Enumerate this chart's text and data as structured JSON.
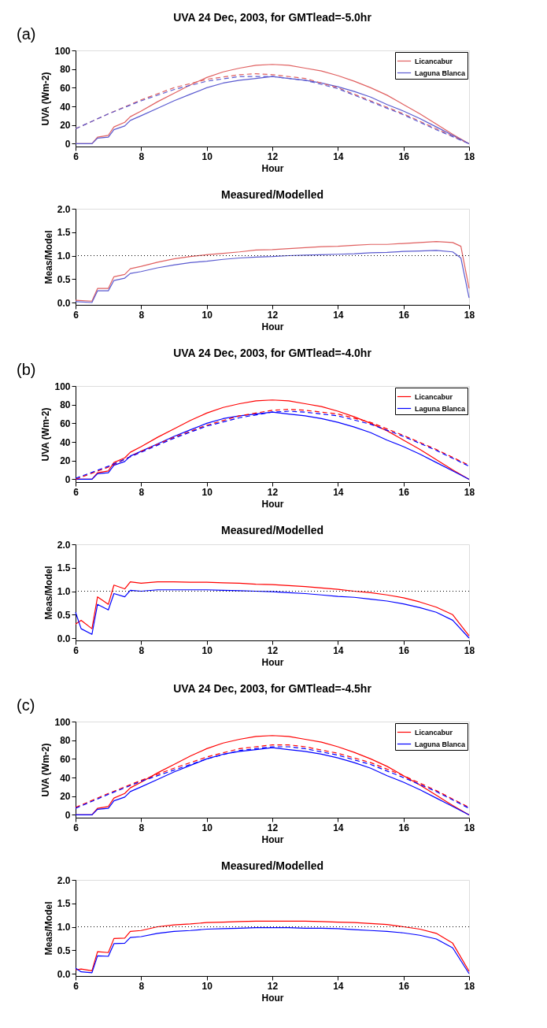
{
  "chart_data": [
    {
      "type": "line",
      "title": "UVA 24 Dec, 2003, for GMTlead=-5.0hr",
      "xlabel": "Hour",
      "ylabel": "UVA (Wm-2)",
      "annotations": [
        "(a)"
      ],
      "xlim": [
        6,
        18
      ],
      "xticks": [
        6,
        8,
        10,
        12,
        14,
        16,
        18
      ],
      "ylim": [
        -3,
        100
      ],
      "yticks": [
        0,
        20,
        40,
        60,
        80,
        100
      ],
      "legend": "top right",
      "series": [
        {
          "name": "Licancabur",
          "color": "#e06060",
          "line_style": "solid",
          "x": [
            6,
            6.5,
            6.67,
            7,
            7.17,
            7.5,
            7.67,
            8,
            8.5,
            9,
            9.5,
            10,
            10.5,
            11,
            11.5,
            12,
            12.5,
            13,
            13.5,
            14,
            14.5,
            15,
            15.5,
            16,
            16.5,
            17,
            17.5,
            18
          ],
          "values": [
            0,
            0,
            7,
            9,
            18,
            23,
            29,
            35,
            45,
            54,
            63,
            71,
            77,
            81,
            84,
            85,
            84,
            81,
            78,
            73,
            67,
            60,
            52,
            42,
            32,
            21,
            10,
            0
          ]
        },
        {
          "name": "Laguna Blanca",
          "color": "#5a5ad0",
          "line_style": "solid",
          "x": [
            6,
            6.5,
            6.67,
            7,
            7.17,
            7.5,
            7.67,
            8,
            8.5,
            9,
            9.5,
            10,
            10.5,
            11,
            11.5,
            12,
            12.5,
            13,
            13.5,
            14,
            14.5,
            15,
            15.5,
            16,
            16.5,
            17,
            17.5,
            18
          ],
          "values": [
            0,
            0,
            6,
            7,
            15,
            19,
            25,
            30,
            38,
            46,
            53,
            60,
            65,
            68,
            70,
            72,
            70,
            68,
            65,
            61,
            56,
            50,
            42,
            35,
            27,
            18,
            9,
            0
          ]
        },
        {
          "color": "#e06060",
          "line_style": "dashed",
          "x": [
            6,
            7,
            8,
            9,
            10,
            11,
            11.5,
            12,
            13,
            14,
            15,
            16,
            17,
            18
          ],
          "values": [
            16,
            32,
            47,
            60,
            69,
            74,
            75,
            74,
            70,
            60,
            46,
            32,
            16,
            0
          ]
        },
        {
          "color": "#5a5ad0",
          "line_style": "dashed",
          "x": [
            6,
            7,
            8,
            9,
            10,
            11,
            11.5,
            12,
            13,
            14,
            15,
            16,
            17,
            18
          ],
          "values": [
            16,
            32,
            46,
            58,
            67,
            72,
            72,
            72,
            68,
            59,
            45,
            31,
            15,
            0
          ]
        }
      ]
    },
    {
      "type": "line",
      "title": "Measured/Modelled",
      "xlabel": "Hour",
      "ylabel": "Meas/Model",
      "xlim": [
        6,
        18
      ],
      "xticks": [
        6,
        8,
        10,
        12,
        14,
        16,
        18
      ],
      "ylim": [
        -0.05,
        2.0
      ],
      "yticks": [
        {
          "value": 0,
          "label": "0.0"
        },
        0.5,
        {
          "value": 1,
          "label": "1.0"
        },
        1.5,
        {
          "value": 2,
          "label": "2.0"
        }
      ],
      "ref_lines": [
        {
          "axis": "y",
          "value": 1,
          "color": "#000000",
          "line_style": "dotted"
        }
      ],
      "series": [
        {
          "color": "#e06060",
          "line_style": "solid",
          "x": [
            6,
            6.5,
            6.67,
            7,
            7.17,
            7.5,
            7.67,
            8,
            8.5,
            9,
            9.5,
            10,
            10.5,
            11,
            11.5,
            12,
            12.5,
            13,
            13.5,
            14,
            14.5,
            15,
            15.5,
            16,
            16.5,
            17,
            17.5,
            17.75,
            18
          ],
          "values": [
            0.05,
            0.03,
            0.3,
            0.3,
            0.55,
            0.6,
            0.72,
            0.77,
            0.86,
            0.93,
            0.98,
            1.02,
            1.05,
            1.08,
            1.12,
            1.13,
            1.15,
            1.17,
            1.19,
            1.2,
            1.22,
            1.24,
            1.24,
            1.26,
            1.28,
            1.3,
            1.28,
            1.2,
            0.3
          ]
        },
        {
          "color": "#5a5ad0",
          "line_style": "solid",
          "x": [
            6,
            6.5,
            6.67,
            7,
            7.17,
            7.5,
            7.67,
            8,
            8.5,
            9,
            9.5,
            10,
            10.5,
            11,
            11.5,
            12,
            12.5,
            13,
            13.5,
            14,
            14.5,
            15,
            15.5,
            16,
            16.5,
            17,
            17.5,
            17.75,
            18
          ],
          "values": [
            0.02,
            0,
            0.25,
            0.25,
            0.47,
            0.52,
            0.62,
            0.66,
            0.74,
            0.8,
            0.85,
            0.88,
            0.92,
            0.95,
            0.97,
            0.98,
            1.0,
            1.01,
            1.02,
            1.03,
            1.04,
            1.06,
            1.07,
            1.09,
            1.1,
            1.11,
            1.08,
            0.95,
            0.1
          ]
        }
      ]
    },
    {
      "type": "line",
      "title": "UVA 24 Dec, 2003, for GMTlead=-4.0hr",
      "xlabel": "Hour",
      "ylabel": "UVA (Wm-2)",
      "annotations": [
        "(b)"
      ],
      "xlim": [
        6,
        18
      ],
      "xticks": [
        6,
        8,
        10,
        12,
        14,
        16,
        18
      ],
      "ylim": [
        -3,
        100
      ],
      "yticks": [
        0,
        20,
        40,
        60,
        80,
        100
      ],
      "legend": "top right",
      "series": [
        {
          "name": "Licancabur",
          "color": "#ff0000",
          "line_style": "solid",
          "x": [
            6,
            6.5,
            6.67,
            7,
            7.17,
            7.5,
            7.67,
            8,
            8.5,
            9,
            9.5,
            10,
            10.5,
            11,
            11.5,
            12,
            12.5,
            13,
            13.5,
            14,
            14.5,
            15,
            15.5,
            16,
            16.5,
            17,
            17.5,
            18
          ],
          "values": [
            0,
            0,
            7,
            9,
            18,
            23,
            29,
            35,
            45,
            54,
            63,
            71,
            77,
            81,
            84,
            85,
            84,
            81,
            78,
            73,
            67,
            60,
            52,
            42,
            32,
            21,
            10,
            0
          ]
        },
        {
          "name": "Laguna Blanca",
          "color": "#0000ff",
          "line_style": "solid",
          "x": [
            6,
            6.5,
            6.67,
            7,
            7.17,
            7.5,
            7.67,
            8,
            8.5,
            9,
            9.5,
            10,
            10.5,
            11,
            11.5,
            12,
            12.5,
            13,
            13.5,
            14,
            14.5,
            15,
            15.5,
            16,
            16.5,
            17,
            17.5,
            18
          ],
          "values": [
            0,
            0,
            6,
            7,
            15,
            19,
            25,
            30,
            38,
            46,
            53,
            60,
            65,
            68,
            70,
            72,
            70,
            68,
            65,
            61,
            56,
            50,
            42,
            35,
            27,
            18,
            9,
            0
          ]
        },
        {
          "color": "#ff0000",
          "line_style": "dashed",
          "x": [
            6,
            7,
            8,
            9,
            10,
            11,
            12,
            12.5,
            13,
            14,
            15,
            16,
            17,
            18
          ],
          "values": [
            0,
            13,
            30,
            45,
            58,
            68,
            74,
            75,
            74,
            70,
            61,
            47,
            32,
            15
          ]
        },
        {
          "color": "#0000ff",
          "line_style": "dashed",
          "x": [
            6,
            7,
            8,
            9,
            10,
            11,
            12,
            12.5,
            13,
            14,
            15,
            16,
            17,
            18
          ],
          "values": [
            1,
            14,
            29,
            44,
            57,
            66,
            72,
            73,
            72,
            68,
            59,
            46,
            31,
            14
          ]
        }
      ]
    },
    {
      "type": "line",
      "title": "Measured/Modelled",
      "xlabel": "Hour",
      "ylabel": "Meas/Model",
      "xlim": [
        6,
        18
      ],
      "xticks": [
        6,
        8,
        10,
        12,
        14,
        16,
        18
      ],
      "ylim": [
        -0.05,
        2.0
      ],
      "yticks": [
        {
          "value": 0,
          "label": "0.0"
        },
        0.5,
        {
          "value": 1,
          "label": "1.0"
        },
        1.5,
        {
          "value": 2,
          "label": "2.0"
        }
      ],
      "ref_lines": [
        {
          "axis": "y",
          "value": 1,
          "color": "#000000",
          "line_style": "dotted"
        }
      ],
      "series": [
        {
          "color": "#ff0000",
          "line_style": "solid",
          "x": [
            6,
            6.17,
            6.5,
            6.67,
            7,
            7.17,
            7.5,
            7.67,
            8,
            8.5,
            9,
            9.5,
            10,
            10.5,
            11,
            11.5,
            12,
            12.5,
            13,
            13.5,
            14,
            14.5,
            15,
            15.5,
            16,
            16.5,
            17,
            17.5,
            18
          ],
          "values": [
            0.3,
            0.38,
            0.2,
            0.88,
            0.72,
            1.13,
            1.05,
            1.2,
            1.17,
            1.2,
            1.2,
            1.19,
            1.19,
            1.18,
            1.17,
            1.15,
            1.14,
            1.12,
            1.1,
            1.07,
            1.04,
            1.0,
            0.97,
            0.92,
            0.86,
            0.77,
            0.66,
            0.5,
            0.05
          ]
        },
        {
          "color": "#0000ff",
          "line_style": "solid",
          "x": [
            6,
            6.17,
            6.5,
            6.67,
            7,
            7.17,
            7.5,
            7.67,
            8,
            8.5,
            9,
            9.5,
            10,
            10.5,
            11,
            11.5,
            12,
            12.5,
            13,
            13.5,
            14,
            14.5,
            15,
            15.5,
            16,
            16.5,
            17,
            17.5,
            18
          ],
          "values": [
            0.55,
            0.2,
            0.08,
            0.72,
            0.6,
            0.95,
            0.88,
            1.02,
            1.0,
            1.03,
            1.03,
            1.03,
            1.03,
            1.02,
            1.01,
            1.0,
            0.99,
            0.97,
            0.95,
            0.92,
            0.89,
            0.87,
            0.83,
            0.79,
            0.73,
            0.65,
            0.55,
            0.38,
            0
          ]
        }
      ]
    },
    {
      "type": "line",
      "title": "UVA 24 Dec, 2003, for GMTlead=-4.5hr",
      "xlabel": "Hour",
      "ylabel": "UVA (Wm-2)",
      "annotations": [
        "(c)"
      ],
      "xlim": [
        6,
        18
      ],
      "xticks": [
        6,
        8,
        10,
        12,
        14,
        16,
        18
      ],
      "ylim": [
        -3,
        100
      ],
      "yticks": [
        0,
        20,
        40,
        60,
        80,
        100
      ],
      "legend": "top right",
      "series": [
        {
          "name": "Licancabur",
          "color": "#ff0000",
          "line_style": "solid",
          "x": [
            6,
            6.5,
            6.67,
            7,
            7.17,
            7.5,
            7.67,
            8,
            8.5,
            9,
            9.5,
            10,
            10.5,
            11,
            11.5,
            12,
            12.5,
            13,
            13.5,
            14,
            14.5,
            15,
            15.5,
            16,
            16.5,
            17,
            17.5,
            18
          ],
          "values": [
            0,
            0,
            7,
            9,
            18,
            23,
            29,
            35,
            45,
            54,
            63,
            71,
            77,
            81,
            84,
            85,
            84,
            81,
            78,
            73,
            67,
            60,
            52,
            42,
            32,
            21,
            10,
            0
          ]
        },
        {
          "name": "Laguna Blanca",
          "color": "#0000ff",
          "line_style": "solid",
          "x": [
            6,
            6.5,
            6.67,
            7,
            7.17,
            7.5,
            7.67,
            8,
            8.5,
            9,
            9.5,
            10,
            10.5,
            11,
            11.5,
            12,
            12.5,
            13,
            13.5,
            14,
            14.5,
            15,
            15.5,
            16,
            16.5,
            17,
            17.5,
            18
          ],
          "values": [
            0,
            0,
            6,
            7,
            15,
            19,
            25,
            30,
            38,
            46,
            53,
            60,
            65,
            68,
            70,
            72,
            70,
            68,
            65,
            61,
            56,
            50,
            42,
            35,
            27,
            18,
            9,
            0
          ]
        },
        {
          "color": "#ff0000",
          "line_style": "dashed",
          "x": [
            6,
            7,
            8,
            9,
            10,
            11,
            12,
            12.5,
            13,
            14,
            15,
            16,
            17,
            18
          ],
          "values": [
            8,
            23,
            37,
            50,
            62,
            71,
            75,
            75,
            73,
            66,
            56,
            42,
            26,
            8
          ]
        },
        {
          "color": "#0000ff",
          "line_style": "dashed",
          "x": [
            6,
            7,
            8,
            9,
            10,
            11,
            12,
            12.5,
            13,
            14,
            15,
            16,
            17,
            18
          ],
          "values": [
            7,
            22,
            36,
            48,
            60,
            69,
            73,
            73,
            71,
            64,
            54,
            40,
            25,
            7
          ]
        }
      ]
    },
    {
      "type": "line",
      "title": "Measured/Modelled",
      "xlabel": "Hour",
      "ylabel": "Meas/Model",
      "xlim": [
        6,
        18
      ],
      "xticks": [
        6,
        8,
        10,
        12,
        14,
        16,
        18
      ],
      "ylim": [
        -0.05,
        2.0
      ],
      "yticks": [
        {
          "value": 0,
          "label": "0.0"
        },
        0.5,
        {
          "value": 1,
          "label": "1.0"
        },
        1.5,
        {
          "value": 2,
          "label": "2.0"
        }
      ],
      "ref_lines": [
        {
          "axis": "y",
          "value": 1,
          "color": "#000000",
          "line_style": "dotted"
        }
      ],
      "series": [
        {
          "color": "#ff0000",
          "line_style": "solid",
          "x": [
            6,
            6.17,
            6.5,
            6.67,
            7,
            7.17,
            7.5,
            7.67,
            8,
            8.5,
            9,
            9.5,
            10,
            10.5,
            11,
            11.5,
            12,
            12.5,
            13,
            13.5,
            14,
            14.5,
            15,
            15.5,
            16,
            16.5,
            17,
            17.5,
            18
          ],
          "values": [
            0.08,
            0.1,
            0.06,
            0.47,
            0.45,
            0.75,
            0.76,
            0.9,
            0.92,
            1.0,
            1.04,
            1.06,
            1.09,
            1.1,
            1.11,
            1.12,
            1.12,
            1.12,
            1.12,
            1.11,
            1.1,
            1.09,
            1.07,
            1.05,
            1.0,
            0.95,
            0.86,
            0.65,
            0.05
          ]
        },
        {
          "color": "#0000ff",
          "line_style": "solid",
          "x": [
            6,
            6.17,
            6.5,
            6.67,
            7,
            7.17,
            7.5,
            7.67,
            8,
            8.5,
            9,
            9.5,
            10,
            10.5,
            11,
            11.5,
            12,
            12.5,
            13,
            13.5,
            14,
            14.5,
            15,
            15.5,
            16,
            16.5,
            17,
            17.5,
            18
          ],
          "values": [
            0.12,
            0.04,
            0.02,
            0.38,
            0.37,
            0.64,
            0.65,
            0.77,
            0.79,
            0.86,
            0.9,
            0.92,
            0.95,
            0.96,
            0.97,
            0.98,
            0.98,
            0.98,
            0.97,
            0.97,
            0.96,
            0.94,
            0.92,
            0.9,
            0.87,
            0.82,
            0.74,
            0.55,
            0
          ]
        }
      ]
    }
  ]
}
